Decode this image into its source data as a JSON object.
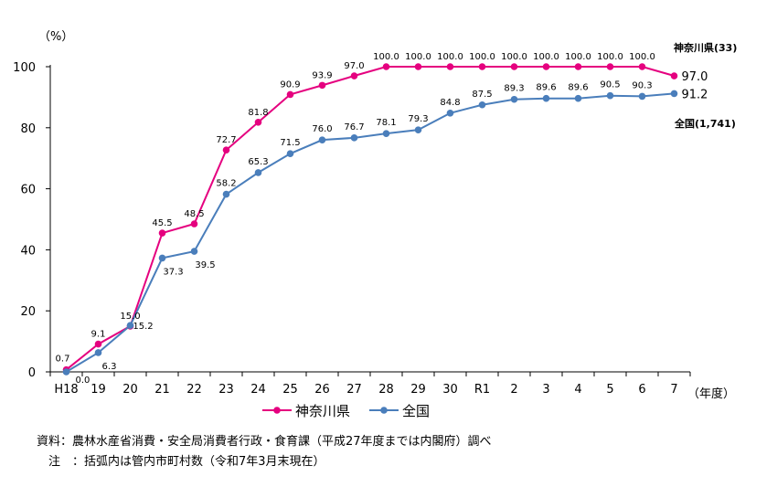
{
  "chart_data": {
    "type": "line",
    "unit_label": "（%）",
    "x_unit_label": "（年度）",
    "categories": [
      "H18",
      "19",
      "20",
      "21",
      "22",
      "23",
      "24",
      "25",
      "26",
      "27",
      "28",
      "29",
      "30",
      "R1",
      "2",
      "3",
      "4",
      "5",
      "6",
      "7"
    ],
    "ylim": [
      0,
      100
    ],
    "yticks": [
      0,
      20,
      40,
      60,
      80,
      100
    ],
    "grid": false,
    "legend_position": "bottom",
    "series": [
      {
        "name": "神奈川県",
        "color": "#e5007f",
        "end_label": "神奈川県(33)",
        "values": [
          0.7,
          9.1,
          15.0,
          45.5,
          48.5,
          72.7,
          81.8,
          90.9,
          93.9,
          97.0,
          100.0,
          100.0,
          100.0,
          100.0,
          100.0,
          100.0,
          100.0,
          100.0,
          100.0,
          97.0
        ],
        "value_labels": [
          "0.7",
          "9.1",
          "15.0",
          "45.5",
          "48.5",
          "72.7",
          "81.8",
          "90.9",
          "93.9",
          "97.0",
          "100.0",
          "100.0",
          "100.0",
          "100.0",
          "100.0",
          "100.0",
          "100.0",
          "100.0",
          "100.0",
          "97.0"
        ]
      },
      {
        "name": "全国",
        "color": "#4a7ebb",
        "end_label": "全国(1,741)",
        "values": [
          0.0,
          6.3,
          15.2,
          37.3,
          39.5,
          58.2,
          65.3,
          71.5,
          76.0,
          76.7,
          78.1,
          79.3,
          84.8,
          87.5,
          89.3,
          89.6,
          89.6,
          90.5,
          90.3,
          91.2
        ],
        "value_labels": [
          "0.0",
          "6.3",
          "15.2",
          "37.3",
          "39.5",
          "58.2",
          "65.3",
          "71.5",
          "76.0",
          "76.7",
          "78.1",
          "79.3",
          "84.8",
          "87.5",
          "89.3",
          "89.6",
          "89.6",
          "90.5",
          "90.3",
          "91.2"
        ]
      }
    ]
  },
  "notes": [
    "資料：農林水産省消費・安全局消費者行政・食育課（平成27年度までは内閣府）調べ",
    "　注　：括弧内は管内市町村数（令和7年3月末現在）"
  ]
}
